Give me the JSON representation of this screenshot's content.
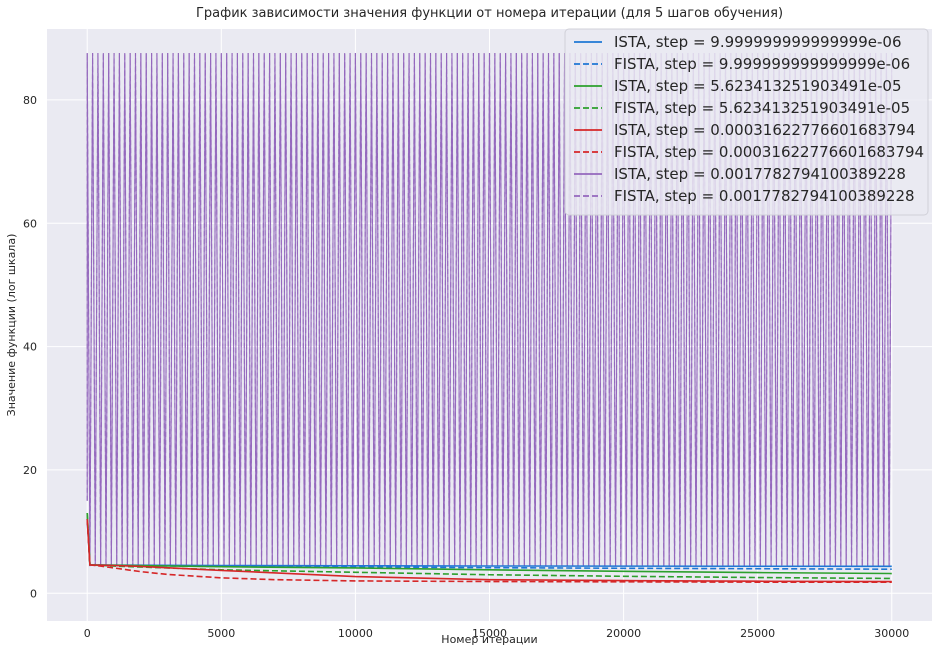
{
  "chart_data": {
    "type": "line",
    "title": "График зависимости значения функции от номера итерации (для 5 шагов обучения)",
    "xlabel": "Номер итерации",
    "ylabel": "Значение функции (лог шкала)",
    "xlim": [
      -1500,
      31500
    ],
    "ylim": [
      -4.5,
      91.5
    ],
    "x_ticks": [
      0,
      5000,
      10000,
      15000,
      20000,
      25000,
      30000
    ],
    "y_ticks": [
      0,
      20,
      40,
      60,
      80
    ],
    "grid": true,
    "legend_position": "top-right",
    "series": [
      {
        "name": "ISTA, step = 9.999999999999999e-06",
        "color": "#1f77d4",
        "dash": "solid",
        "kind": "decay",
        "x": [
          0,
          100,
          1000,
          5000,
          10000,
          15000,
          20000,
          25000,
          30000
        ],
        "values": [
          12.0,
          4.6,
          4.55,
          4.5,
          4.45,
          4.42,
          4.4,
          4.38,
          4.36
        ]
      },
      {
        "name": "FISTA, step = 9.999999999999999e-06",
        "color": "#1f77d4",
        "dash": "dashed",
        "kind": "decay",
        "x": [
          0,
          100,
          1000,
          5000,
          10000,
          15000,
          20000,
          25000,
          30000
        ],
        "values": [
          12.0,
          4.6,
          4.5,
          4.35,
          4.25,
          4.15,
          4.05,
          3.98,
          3.9
        ]
      },
      {
        "name": "FISTA, step = 5.623413251903491e-05",
        "color": "#2ca02c",
        "dash": "dashed",
        "kind": "decay",
        "x": [
          0,
          100,
          1000,
          5000,
          10000,
          15000,
          20000,
          25000,
          30000
        ],
        "values": [
          13.0,
          4.6,
          4.4,
          3.8,
          3.4,
          3.0,
          2.75,
          2.55,
          2.4
        ]
      },
      {
        "name": "ISTA, step = 5.623413251903491e-05",
        "color": "#2ca02c",
        "dash": "solid",
        "kind": "decay",
        "x": [
          0,
          100,
          1000,
          5000,
          10000,
          15000,
          20000,
          25000,
          30000
        ],
        "values": [
          13.0,
          4.6,
          4.55,
          4.3,
          4.1,
          3.8,
          3.55,
          3.35,
          3.2
        ]
      },
      {
        "name": "FISTA, step = 0.00031622776601683794",
        "color": "#d62728",
        "dash": "dashed",
        "kind": "decay",
        "x": [
          0,
          100,
          500,
          1000,
          2000,
          3000,
          5000,
          7000,
          10000,
          15000,
          20000,
          25000,
          30000
        ],
        "values": [
          12.0,
          4.6,
          4.4,
          4.1,
          3.5,
          3.05,
          2.5,
          2.2,
          2.0,
          1.9,
          1.85,
          1.8,
          1.8
        ]
      },
      {
        "name": "ISTA, step = 0.00031622776601683794",
        "color": "#d62728",
        "dash": "solid",
        "kind": "decay",
        "x": [
          0,
          100,
          1000,
          2000,
          5000,
          10000,
          15000,
          20000,
          25000,
          30000
        ],
        "values": [
          12.0,
          4.6,
          4.5,
          4.35,
          3.7,
          2.7,
          2.2,
          2.05,
          1.95,
          1.9
        ]
      },
      {
        "name": "ISTA, step = 0.0017782794100389228",
        "color": "#9467bd",
        "dash": "solid",
        "kind": "oscillating",
        "x_range": [
          0,
          30000
        ],
        "low": 4.4,
        "high": 87.6
      },
      {
        "name": "FISTA, step = 0.0017782794100389228",
        "color": "#9467bd",
        "dash": "dashed",
        "kind": "oscillating",
        "x_range": [
          0,
          30000
        ],
        "low": 4.4,
        "high": 87.6
      }
    ],
    "legend_order": [
      "ISTA, step = 9.999999999999999e-06",
      "FISTA, step = 9.999999999999999e-06",
      "ISTA, step = 5.623413251903491e-05",
      "FISTA, step = 5.623413251903491e-05",
      "ISTA, step = 0.00031622776601683794",
      "FISTA, step = 0.00031622776601683794",
      "ISTA, step = 0.0017782794100389228",
      "FISTA, step = 0.0017782794100389228"
    ]
  }
}
